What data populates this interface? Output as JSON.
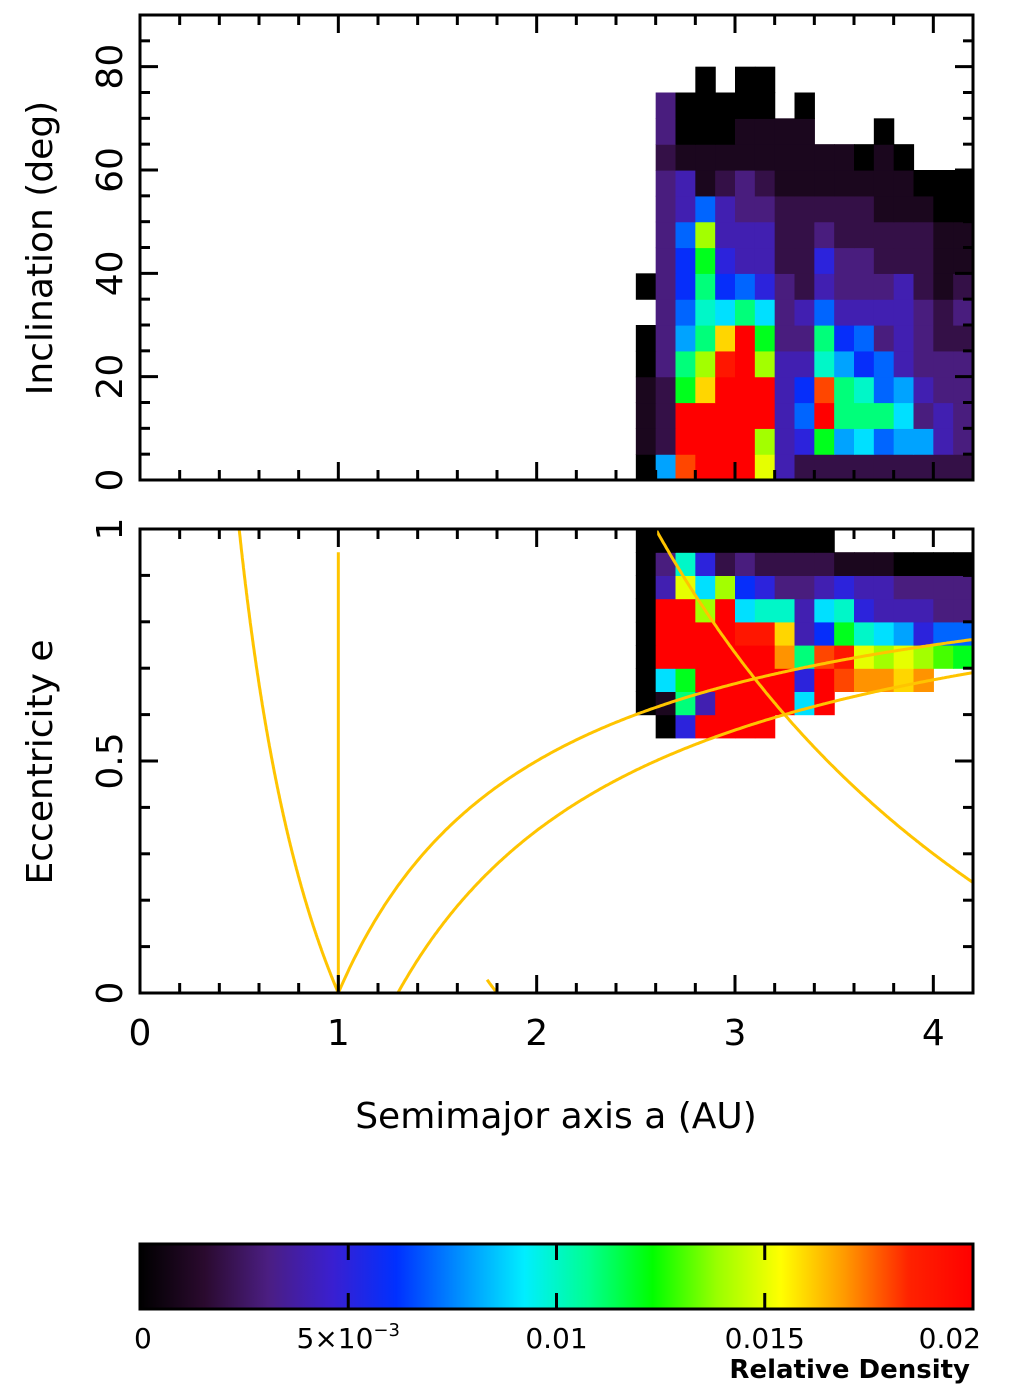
{
  "chart_data": [
    {
      "panel": "top",
      "type": "heatmap",
      "xlabel": "",
      "ylabel": "Inclination (deg)",
      "xlim": [
        0,
        4.2
      ],
      "ylim": [
        0,
        90
      ],
      "x_tick_labels": [],
      "y_tick_labels": [
        "0",
        "20",
        "40",
        "60",
        "80"
      ],
      "y_tick_values": [
        0,
        20,
        40,
        60,
        80
      ],
      "bins": {
        "x_start": 2.5,
        "x_step": 0.1,
        "y_start": 0,
        "y_step": 5,
        "note": "rows from low inclination upward; each row lists relative density per a-bin starting at x_start; null = empty",
        "rows": [
          [
            0.0,
            0.008,
            0.018,
            0.02,
            0.02,
            0.02,
            0.015,
            0.004,
            0.002,
            0.002,
            0.002,
            0.002,
            0.002,
            0.002,
            0.002,
            0.002,
            0.002,
            0.002
          ],
          [
            0.001,
            0.002,
            0.02,
            0.02,
            0.02,
            0.02,
            0.014,
            0.004,
            0.005,
            0.012,
            0.008,
            0.009,
            0.007,
            0.008,
            0.008,
            0.004,
            0.003,
            0.003
          ],
          [
            0.001,
            0.002,
            0.02,
            0.02,
            0.02,
            0.02,
            0.02,
            0.004,
            0.007,
            0.02,
            0.011,
            0.011,
            0.011,
            0.009,
            0.003,
            0.004,
            0.003,
            0.003
          ],
          [
            0.001,
            0.002,
            0.012,
            0.016,
            0.02,
            0.02,
            0.02,
            0.004,
            0.006,
            0.018,
            0.011,
            0.01,
            0.007,
            0.008,
            0.004,
            0.003,
            0.003,
            0.004
          ],
          [
            0.0,
            0.003,
            0.011,
            0.014,
            0.019,
            0.02,
            0.014,
            0.004,
            0.004,
            0.01,
            0.008,
            0.006,
            0.007,
            0.004,
            0.003,
            0.003,
            0.003,
            0.002
          ],
          [
            0.0,
            0.003,
            0.008,
            0.011,
            0.016,
            0.02,
            0.012,
            0.003,
            0.003,
            0.011,
            0.006,
            0.007,
            0.003,
            0.004,
            0.003,
            0.002,
            0.002,
            0.002
          ],
          [
            null,
            0.003,
            0.007,
            0.01,
            0.009,
            0.011,
            0.009,
            0.003,
            0.004,
            0.007,
            0.004,
            0.004,
            0.004,
            0.004,
            0.003,
            0.002,
            0.003,
            0.002
          ],
          [
            0.0,
            0.003,
            0.006,
            0.011,
            0.006,
            0.007,
            0.005,
            0.003,
            0.002,
            0.004,
            0.003,
            0.003,
            0.003,
            0.004,
            0.002,
            0.001,
            0.002,
            0.002
          ],
          [
            null,
            0.003,
            0.006,
            0.012,
            0.005,
            0.004,
            0.004,
            0.002,
            0.002,
            0.005,
            0.003,
            0.003,
            0.002,
            0.002,
            0.002,
            0.001,
            0.001,
            0.001
          ],
          [
            null,
            0.003,
            0.007,
            0.014,
            0.004,
            0.004,
            0.004,
            0.002,
            0.002,
            0.003,
            0.002,
            0.002,
            0.002,
            0.002,
            0.002,
            0.001,
            0.001,
            0.001
          ],
          [
            null,
            0.003,
            0.004,
            0.007,
            0.004,
            0.003,
            0.003,
            0.002,
            0.002,
            0.002,
            0.002,
            0.002,
            0.001,
            0.001,
            0.001,
            0.0,
            0.0,
            0.0
          ],
          [
            null,
            0.003,
            0.004,
            0.001,
            0.002,
            0.003,
            0.002,
            0.001,
            0.001,
            0.001,
            0.001,
            0.001,
            0.001,
            0.001,
            0.0,
            0.0,
            0.0,
            null
          ],
          [
            null,
            0.002,
            0.001,
            0.001,
            0.001,
            0.001,
            0.001,
            0.001,
            0.001,
            0.001,
            0.001,
            0.0,
            0.001,
            0.0,
            null,
            null,
            null,
            null
          ],
          [
            null,
            0.003,
            0.0,
            0.0,
            0.0,
            0.001,
            0.001,
            0.001,
            0.001,
            null,
            null,
            null,
            0.0,
            null,
            null,
            null,
            null,
            null
          ],
          [
            null,
            0.003,
            0.0,
            0.0,
            0.0,
            0.0,
            0.0,
            null,
            0.0,
            null,
            null,
            null,
            null,
            null,
            null,
            null,
            null,
            null
          ],
          [
            null,
            null,
            null,
            0.0,
            null,
            0.0,
            0.0,
            null,
            null,
            null,
            null,
            null,
            null,
            null,
            null,
            null,
            null,
            null
          ]
        ]
      }
    },
    {
      "panel": "bottom",
      "type": "heatmap",
      "xlabel": "Semimajor axis a (AU)",
      "ylabel": "Eccentricity e",
      "xlim": [
        0,
        4.2
      ],
      "ylim": [
        0,
        1
      ],
      "x_tick_labels": [
        "0",
        "1",
        "2",
        "3",
        "4"
      ],
      "x_tick_values": [
        0,
        1,
        2,
        3,
        4
      ],
      "y_tick_labels": [
        "0",
        "0.5",
        "1"
      ],
      "y_tick_values": [
        0,
        0.5,
        1
      ],
      "bins": {
        "x_start": 2.5,
        "x_step": 0.1,
        "y_start": 0.55,
        "y_step": 0.05,
        "note": "rows from e=0.55 upward; each row lists relative density per a-bin starting at x_start; null = empty",
        "rows": [
          [
            null,
            0.0,
            0.005,
            0.02,
            0.02,
            0.02,
            0.02,
            null,
            null,
            null,
            null,
            null,
            null,
            null,
            null,
            null,
            null,
            null
          ],
          [
            0.0,
            0.001,
            0.011,
            0.004,
            0.02,
            0.02,
            0.02,
            0.02,
            0.009,
            0.02,
            null,
            null,
            null,
            null,
            null,
            null,
            null,
            null
          ],
          [
            0.0,
            0.009,
            0.012,
            0.02,
            0.02,
            0.02,
            0.02,
            0.02,
            0.005,
            0.02,
            0.018,
            0.017,
            0.017,
            0.016,
            0.017,
            null,
            null,
            null
          ],
          [
            0.0,
            0.02,
            0.02,
            0.02,
            0.02,
            0.02,
            0.02,
            0.017,
            0.011,
            0.018,
            0.019,
            0.015,
            0.014,
            0.015,
            0.014,
            0.013,
            0.012,
            0.012
          ],
          [
            0.0,
            0.02,
            0.02,
            0.02,
            0.02,
            0.019,
            0.019,
            0.016,
            0.004,
            0.006,
            0.012,
            0.01,
            0.009,
            0.008,
            0.005,
            0.007,
            0.007,
            0.008
          ],
          [
            0.0,
            0.02,
            0.02,
            0.014,
            0.02,
            0.009,
            0.01,
            0.01,
            0.004,
            0.009,
            0.01,
            0.005,
            0.004,
            0.004,
            0.004,
            0.003,
            0.003,
            0.003
          ],
          [
            0.0,
            0.004,
            0.015,
            0.009,
            0.014,
            0.006,
            0.005,
            0.003,
            0.003,
            0.004,
            0.005,
            0.004,
            0.004,
            0.003,
            0.003,
            0.003,
            0.003,
            0.003
          ],
          [
            0.0,
            0.003,
            0.01,
            0.005,
            0.002,
            0.003,
            0.002,
            0.002,
            0.002,
            0.002,
            0.001,
            0.001,
            0.001,
            0.0,
            0.0,
            0.0,
            0.0,
            0.0
          ],
          [
            0.0,
            0.0,
            0.0,
            0.0,
            0.0,
            0.0,
            0.0,
            0.0,
            0.0,
            0.0,
            null,
            null,
            null,
            null,
            null,
            null,
            null,
            null
          ]
        ]
      },
      "overlay_curves": [
        {
          "relation": "q = a(1-e) = 1",
          "color": "#ffc400"
        },
        {
          "relation": "Q = a(1+e) = 1",
          "color": "#ffc400"
        },
        {
          "relation": "q = a(1-e) = 1.3",
          "color": "#ffc400"
        },
        {
          "relation": "a = 1",
          "color": "#ffc400"
        },
        {
          "relation": "Q = a(1+e) = 1.8",
          "color": "#ffc400"
        },
        {
          "relation": "Q = a(1+e) = 5.2",
          "color": "#ffc400"
        }
      ]
    }
  ],
  "colorbar": {
    "range": [
      0,
      0.02
    ],
    "tick_labels": [
      "0",
      "5×10",
      "0.01",
      "0.015",
      "0.02"
    ],
    "tick_exponent": "−3",
    "tick_values": [
      0,
      0.005,
      0.01,
      0.015,
      0.02
    ],
    "label": "Relative Density",
    "colormap": [
      "#000000",
      "#2a0a2e",
      "#4b1e82",
      "#3a1fd0",
      "#0030ff",
      "#0090ff",
      "#00eeff",
      "#00ff90",
      "#00ff00",
      "#99ff00",
      "#ffff00",
      "#ff9900",
      "#ff2200",
      "#ff0000"
    ]
  }
}
